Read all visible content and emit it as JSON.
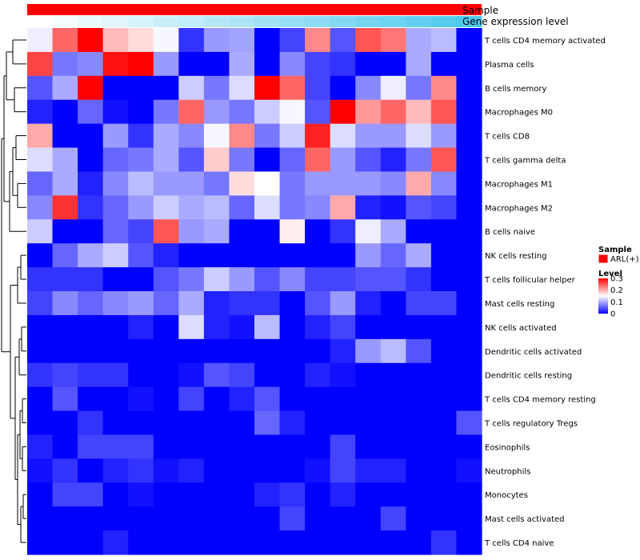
{
  "chart_data": {
    "type": "heatmap",
    "annotation_tracks": [
      {
        "name": "Sample",
        "color": "#ff0000"
      },
      {
        "name": "Gene expression level",
        "gradient": {
          "low": "#ffffff",
          "high": "#4fc8ee"
        }
      }
    ],
    "legend": {
      "sample": {
        "title": "Sample",
        "entries": [
          {
            "label": "ARL(+)",
            "color": "#ff0000"
          }
        ]
      },
      "level": {
        "title": "Level",
        "ticks": [
          "0.3",
          "0.2",
          "0.1",
          "0"
        ],
        "tick_values": [
          0.3,
          0.2,
          0.1,
          0
        ]
      }
    },
    "color_scale": {
      "low": "#0000ff",
      "mid": "#ffffff",
      "high": "#ff0000",
      "min": 0,
      "mid_value": 0.15,
      "max": 0.3
    },
    "n_columns": 18,
    "rows": [
      {
        "label": "T cells CD4 memory activated",
        "values": [
          0.14,
          0.24,
          0.3,
          0.19,
          0.17,
          0.145,
          0.03,
          0.09,
          0.095,
          0.0,
          0.04,
          0.22,
          0.05,
          0.25,
          0.23,
          0.1,
          0.11,
          0.0
        ]
      },
      {
        "label": "Plasma cells",
        "values": [
          0.26,
          0.07,
          0.08,
          0.29,
          0.3,
          0.09,
          0.0,
          0.0,
          0.1,
          0.0,
          0.08,
          0.04,
          0.03,
          0.0,
          0.0,
          0.1,
          0.0,
          0.0
        ]
      },
      {
        "label": "B cells memory",
        "values": [
          0.05,
          0.1,
          0.3,
          0.0,
          0.0,
          0.0,
          0.12,
          0.07,
          0.13,
          0.3,
          0.24,
          0.04,
          0.0,
          0.08,
          0.14,
          0.07,
          0.22,
          0.0
        ]
      },
      {
        "label": "Macrophages M0",
        "values": [
          0.02,
          0.0,
          0.06,
          0.01,
          0.0,
          0.07,
          0.24,
          0.09,
          0.07,
          0.12,
          0.145,
          0.05,
          0.3,
          0.21,
          0.24,
          0.19,
          0.25,
          0.0
        ]
      },
      {
        "label": "T cells CD8",
        "values": [
          0.2,
          0.0,
          0.0,
          0.09,
          0.03,
          0.1,
          0.08,
          0.145,
          0.22,
          0.07,
          0.12,
          0.28,
          0.13,
          0.09,
          0.09,
          0.13,
          0.09,
          0.0
        ]
      },
      {
        "label": "T cells gamma delta",
        "values": [
          0.13,
          0.1,
          0.0,
          0.06,
          0.07,
          0.1,
          0.05,
          0.18,
          0.07,
          0.0,
          0.06,
          0.24,
          0.09,
          0.05,
          0.02,
          0.07,
          0.25,
          0.0
        ]
      },
      {
        "label": "Macrophages M1",
        "values": [
          0.06,
          0.1,
          0.02,
          0.08,
          0.11,
          0.09,
          0.09,
          0.07,
          0.17,
          0.15,
          0.07,
          0.09,
          0.09,
          0.09,
          0.08,
          0.2,
          0.08,
          0.0
        ]
      },
      {
        "label": "Macrophages M2",
        "values": [
          0.08,
          0.27,
          0.03,
          0.06,
          0.09,
          0.12,
          0.1,
          0.11,
          0.06,
          0.13,
          0.07,
          0.08,
          0.2,
          0.02,
          0.01,
          0.05,
          0.04,
          0.0
        ]
      },
      {
        "label": "B cells naive",
        "values": [
          0.12,
          0.0,
          0.0,
          0.06,
          0.04,
          0.25,
          0.09,
          0.1,
          0.0,
          0.0,
          0.16,
          0.0,
          0.03,
          0.14,
          0.1,
          0.0,
          0.0,
          0.0
        ]
      },
      {
        "label": "NK cells resting",
        "values": [
          0.0,
          0.06,
          0.1,
          0.12,
          0.05,
          0.02,
          0.0,
          0.0,
          0.0,
          0.0,
          0.0,
          0.0,
          0.0,
          0.09,
          0.06,
          0.1,
          0.0,
          0.0
        ]
      },
      {
        "label": "T cells follicular helper",
        "values": [
          0.03,
          0.03,
          0.03,
          0.0,
          0.0,
          0.05,
          0.07,
          0.12,
          0.09,
          0.05,
          0.08,
          0.04,
          0.04,
          0.05,
          0.05,
          0.03,
          0.0,
          0.0
        ]
      },
      {
        "label": "Mast cells resting",
        "values": [
          0.04,
          0.08,
          0.06,
          0.08,
          0.09,
          0.06,
          0.1,
          0.02,
          0.03,
          0.03,
          0.0,
          0.05,
          0.09,
          0.02,
          0.0,
          0.04,
          0.04,
          0.0
        ]
      },
      {
        "label": "NK cells activated",
        "values": [
          0.0,
          0.0,
          0.0,
          0.0,
          0.02,
          0.0,
          0.13,
          0.02,
          0.01,
          0.11,
          0.0,
          0.02,
          0.04,
          0.0,
          0.0,
          0.0,
          0.0,
          0.0
        ]
      },
      {
        "label": "Dendritic cells activated",
        "values": [
          0.0,
          0.0,
          0.0,
          0.0,
          0.0,
          0.0,
          0.0,
          0.0,
          0.0,
          0.0,
          0.0,
          0.0,
          0.02,
          0.09,
          0.11,
          0.05,
          0.0,
          0.0
        ]
      },
      {
        "label": "Dendritic cells resting",
        "values": [
          0.03,
          0.04,
          0.03,
          0.03,
          0.0,
          0.0,
          0.01,
          0.05,
          0.04,
          0.0,
          0.0,
          0.02,
          0.01,
          0.0,
          0.0,
          0.0,
          0.0,
          0.0
        ]
      },
      {
        "label": "T cells CD4 memory resting",
        "values": [
          0.0,
          0.05,
          0.0,
          0.0,
          0.01,
          0.0,
          0.04,
          0.0,
          0.02,
          0.05,
          0.0,
          0.0,
          0.0,
          0.0,
          0.0,
          0.0,
          0.0,
          0.0
        ]
      },
      {
        "label": "T cells regulatory  Tregs",
        "values": [
          0.0,
          0.0,
          0.03,
          0.0,
          0.0,
          0.0,
          0.0,
          0.0,
          0.0,
          0.06,
          0.02,
          0.0,
          0.0,
          0.0,
          0.0,
          0.0,
          0.0,
          0.05
        ]
      },
      {
        "label": "Eosinophils",
        "values": [
          0.02,
          0.0,
          0.04,
          0.04,
          0.04,
          0.0,
          0.0,
          0.0,
          0.0,
          0.0,
          0.0,
          0.0,
          0.04,
          0.0,
          0.0,
          0.0,
          0.0,
          0.0
        ]
      },
      {
        "label": "Neutrophils",
        "values": [
          0.01,
          0.03,
          0.0,
          0.02,
          0.03,
          0.01,
          0.02,
          0.0,
          0.0,
          0.0,
          0.0,
          0.01,
          0.04,
          0.02,
          0.02,
          0.0,
          0.0,
          0.01
        ]
      },
      {
        "label": "Monocytes",
        "values": [
          0.0,
          0.04,
          0.04,
          0.0,
          0.01,
          0.0,
          0.0,
          0.0,
          0.0,
          0.02,
          0.03,
          0.0,
          0.02,
          0.0,
          0.0,
          0.0,
          0.0,
          0.0
        ]
      },
      {
        "label": "Mast cells activated",
        "values": [
          0.0,
          0.0,
          0.0,
          0.0,
          0.0,
          0.0,
          0.0,
          0.0,
          0.0,
          0.0,
          0.04,
          0.0,
          0.0,
          0.0,
          0.04,
          0.0,
          0.0,
          0.0
        ]
      },
      {
        "label": "T cells CD4 naive",
        "values": [
          0.0,
          0.0,
          0.0,
          0.02,
          0.0,
          0.0,
          0.0,
          0.0,
          0.0,
          0.0,
          0.0,
          0.0,
          0.0,
          0.0,
          0.0,
          0.0,
          0.03,
          0.0
        ]
      }
    ]
  }
}
